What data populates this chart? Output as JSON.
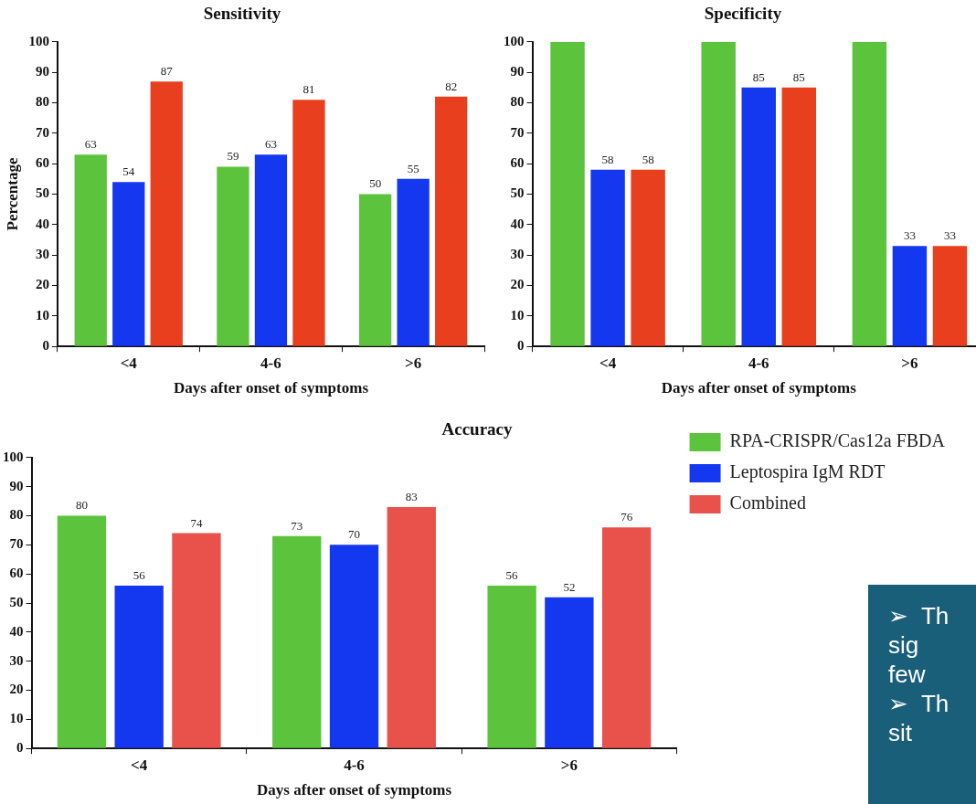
{
  "chart_data": [
    {
      "type": "bar",
      "title": "Sensitivity",
      "xlabel": "Days after onset of symptoms",
      "ylabel": "Percentage",
      "categories": [
        "<4",
        "4-6",
        ">6"
      ],
      "ylim": [
        0,
        100
      ],
      "yticks": [
        0,
        10,
        20,
        30,
        40,
        50,
        60,
        70,
        80,
        90,
        100
      ],
      "grid": false,
      "legend": false,
      "data_labels": true,
      "series": [
        {
          "color": "#5cc33c",
          "values": [
            63,
            59,
            50
          ]
        },
        {
          "color": "#1437f0",
          "values": [
            54,
            63,
            55
          ]
        },
        {
          "color": "#e8401e",
          "values": [
            87,
            81,
            82
          ]
        }
      ]
    },
    {
      "type": "bar",
      "title": "Specificity",
      "xlabel": "Days after onset of symptoms",
      "categories": [
        "<4",
        "4-6",
        ">6"
      ],
      "ylim": [
        0,
        100
      ],
      "yticks": [
        0,
        10,
        20,
        30,
        40,
        50,
        60,
        70,
        80,
        90,
        100
      ],
      "grid": false,
      "legend": false,
      "series": [
        {
          "color": "#5cc33c",
          "values": [
            100,
            100,
            100
          ],
          "value_labels": [
            null,
            null,
            null
          ]
        },
        {
          "color": "#1437f0",
          "values": [
            58,
            85,
            33
          ],
          "value_labels": [
            "58",
            "85",
            "33"
          ]
        },
        {
          "color": "#e8401e",
          "values": [
            58,
            85,
            33
          ],
          "value_labels": [
            "58",
            "85",
            "33"
          ]
        }
      ]
    },
    {
      "type": "bar",
      "title": "Accuracy",
      "xlabel": "Days after onset of symptoms",
      "categories": [
        "<4",
        "4-6",
        ">6"
      ],
      "ylim": [
        0,
        100
      ],
      "yticks": [
        0,
        10,
        20,
        30,
        40,
        50,
        60,
        70,
        80,
        90,
        100
      ],
      "grid": false,
      "legend": "right",
      "data_labels": true,
      "series": [
        {
          "name": "RPA-CRISPR/Cas12a FBDA",
          "color": "#5cc33c",
          "values": [
            80,
            73,
            56
          ]
        },
        {
          "name": "Leptospira IgM RDT",
          "color": "#1437f0",
          "values": [
            56,
            70,
            52
          ]
        },
        {
          "name": "Combined",
          "color": "#e8524a",
          "values": [
            74,
            83,
            76
          ]
        }
      ]
    },
    {
      "type": "other",
      "annotations": [
        "➢  Th",
        "sig",
        "few",
        "➢  Th",
        "sit"
      ]
    }
  ]
}
